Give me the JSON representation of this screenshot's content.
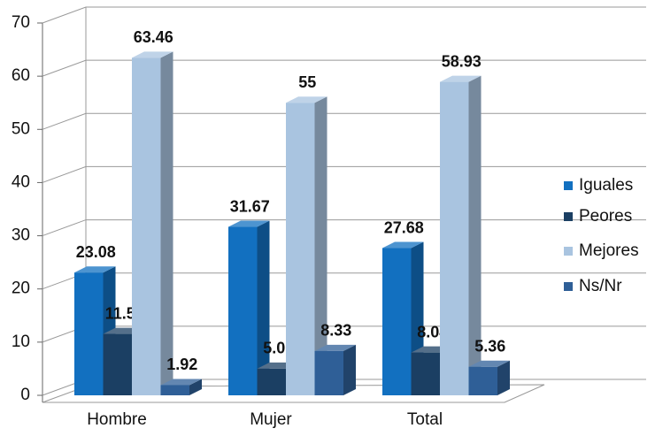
{
  "chart_data": {
    "type": "bar3d",
    "categories": [
      "Hombre",
      "Mujer",
      "Total"
    ],
    "series": [
      {
        "name": "Iguales",
        "color": "#1270c0",
        "values": [
          23.08,
          31.67,
          27.68
        ],
        "value_labels": [
          "23.08",
          "31.67",
          "27.68"
        ]
      },
      {
        "name": "Peores",
        "color": "#1b3f63",
        "values": [
          11.54,
          5.0,
          8.04
        ],
        "value_labels": [
          "11.54",
          "5.00",
          "8.04"
        ]
      },
      {
        "name": "Mejores",
        "color": "#a9c4e0",
        "values": [
          63.46,
          55,
          58.93
        ],
        "value_labels": [
          "63.46",
          "55",
          "58.93"
        ]
      },
      {
        "name": "Ns/Nr",
        "color": "#2f5f97",
        "values": [
          1.92,
          8.33,
          5.36
        ],
        "value_labels": [
          "1.92",
          "8.33",
          "5.36"
        ]
      }
    ],
    "ylim": [
      0,
      70
    ],
    "yticks": [
      0,
      10,
      20,
      30,
      40,
      50,
      60,
      70
    ],
    "grid": true,
    "legend": "right"
  }
}
